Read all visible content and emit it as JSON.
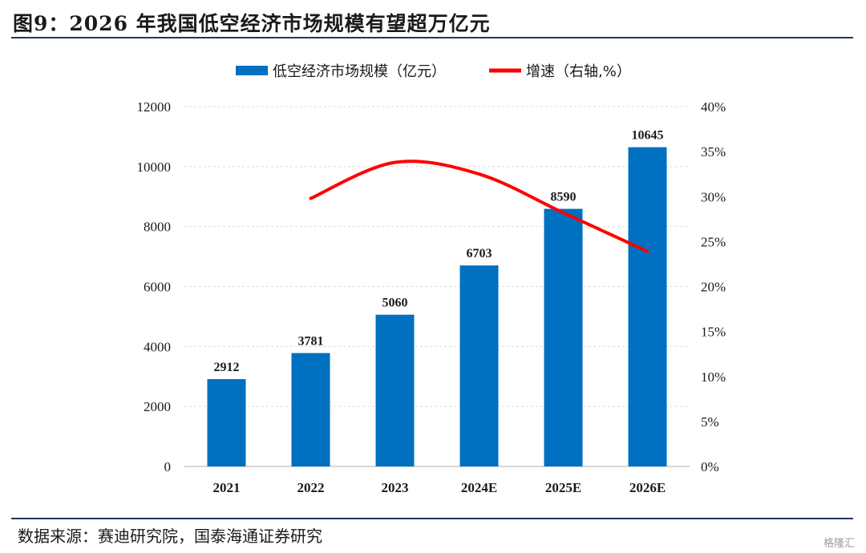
{
  "title": "图9：2026 年我国低空经济市场规模有望超万亿元",
  "source": "数据来源：赛迪研究院，国泰海通证券研究",
  "watermark": "格隆汇",
  "colors": {
    "bar": "#0070c0",
    "line": "#ff0000",
    "rule": "#1f3864",
    "grid": "#d9d9d9"
  },
  "chart_data": {
    "type": "bar",
    "categories": [
      "2021",
      "2022",
      "2023",
      "2024E",
      "2025E",
      "2026E"
    ],
    "series": [
      {
        "name": "低空经济市场规模（亿元）",
        "type": "bar",
        "axis": "left",
        "values": [
          2912,
          3781,
          5060,
          6703,
          8590,
          10645
        ]
      },
      {
        "name": "增速（右轴,%）",
        "type": "line",
        "axis": "right",
        "values": [
          null,
          29.8,
          33.8,
          32.5,
          28.2,
          23.9
        ]
      }
    ],
    "y_left": {
      "min": 0,
      "max": 12000,
      "ticks": [
        "0",
        "2000",
        "4000",
        "6000",
        "8000",
        "10000",
        "12000"
      ]
    },
    "y_right": {
      "min": 0,
      "max": 40,
      "ticks": [
        "0%",
        "5%",
        "10%",
        "15%",
        "20%",
        "25%",
        "30%",
        "35%",
        "40%"
      ]
    },
    "data_labels": [
      "2912",
      "3781",
      "5060",
      "6703",
      "8590",
      "10645"
    ],
    "grid": true,
    "legend_position": "top-center"
  }
}
